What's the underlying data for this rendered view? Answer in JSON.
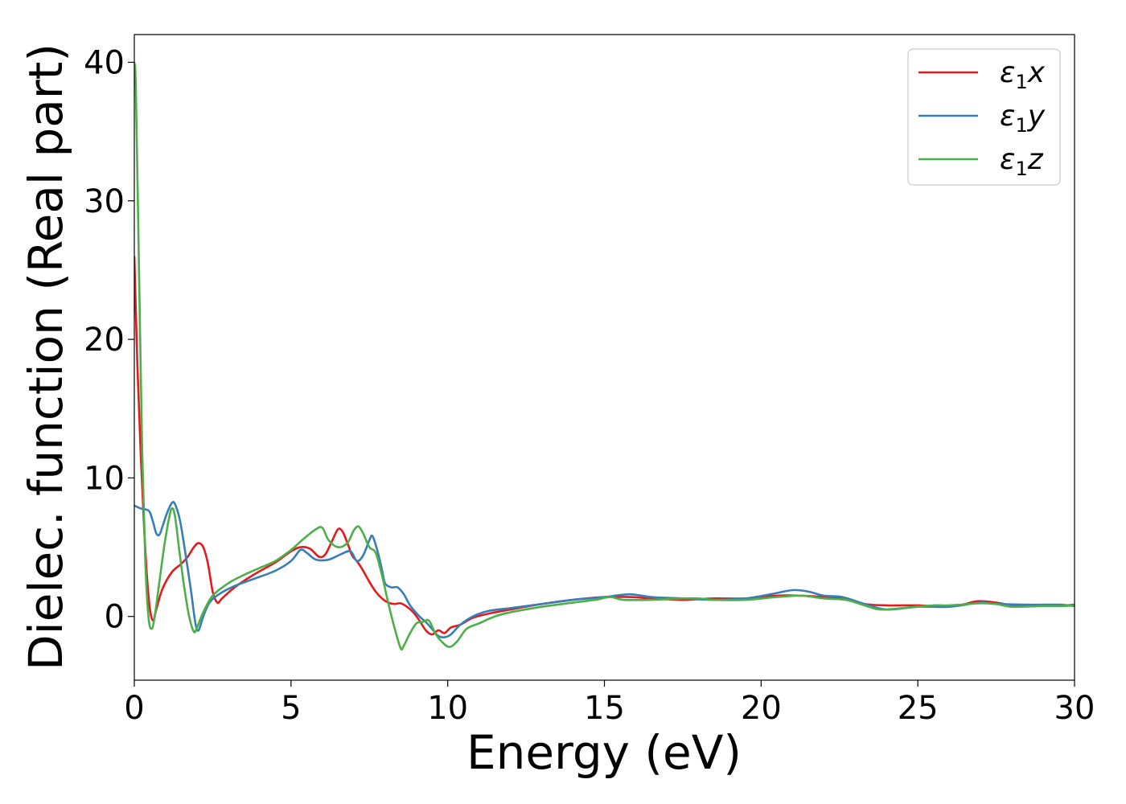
{
  "chart_data": {
    "type": "line",
    "title": "",
    "xlabel": "Energy (eV)",
    "ylabel": "Dielec. function (Real part)",
    "xlim": [
      0,
      30
    ],
    "ylim": [
      -4.6,
      42
    ],
    "xticks": [
      0,
      5,
      10,
      15,
      20,
      25,
      30
    ],
    "yticks": [
      0,
      10,
      20,
      30,
      40
    ],
    "grid": false,
    "legend_position": "top-right",
    "series": [
      {
        "name": "ε₁x",
        "legend_base": "ε",
        "legend_sub": "1",
        "legend_suffix": "x",
        "color": "#e41a1c",
        "points": [
          [
            0,
            26
          ],
          [
            0.1,
            18
          ],
          [
            0.2,
            12
          ],
          [
            0.3,
            7
          ],
          [
            0.4,
            3
          ],
          [
            0.5,
            0.5
          ],
          [
            0.6,
            -0.3
          ],
          [
            0.7,
            0.5
          ],
          [
            0.9,
            2
          ],
          [
            1.2,
            3.2
          ],
          [
            1.5,
            3.8
          ],
          [
            1.7,
            4.3
          ],
          [
            1.9,
            5
          ],
          [
            2.05,
            5.3
          ],
          [
            2.2,
            5
          ],
          [
            2.35,
            3.8
          ],
          [
            2.5,
            1.8
          ],
          [
            2.65,
            1
          ],
          [
            2.8,
            1.3
          ],
          [
            3.2,
            2.1
          ],
          [
            3.8,
            3
          ],
          [
            4.5,
            3.9
          ],
          [
            5,
            4.7
          ],
          [
            5.3,
            5
          ],
          [
            5.6,
            4.9
          ],
          [
            5.9,
            4.3
          ],
          [
            6.1,
            4.5
          ],
          [
            6.3,
            5.4
          ],
          [
            6.5,
            6.3
          ],
          [
            6.65,
            6.1
          ],
          [
            6.8,
            5.3
          ],
          [
            6.95,
            4.4
          ],
          [
            7.1,
            4
          ],
          [
            7.25,
            3.5
          ],
          [
            7.5,
            2.5
          ],
          [
            7.7,
            1.8
          ],
          [
            7.9,
            1.3
          ],
          [
            8.1,
            1
          ],
          [
            8.3,
            0.9
          ],
          [
            8.5,
            0.95
          ],
          [
            8.7,
            0.7
          ],
          [
            8.9,
            0.3
          ],
          [
            9.1,
            -0.3
          ],
          [
            9.3,
            -1
          ],
          [
            9.5,
            -1.3
          ],
          [
            9.7,
            -1
          ],
          [
            9.9,
            -1.2
          ],
          [
            10.1,
            -0.8
          ],
          [
            10.4,
            -0.6
          ],
          [
            10.8,
            -0.1
          ],
          [
            11.3,
            0.2
          ],
          [
            12,
            0.5
          ],
          [
            13,
            0.9
          ],
          [
            14,
            1.2
          ],
          [
            15,
            1.4
          ],
          [
            15.8,
            1.4
          ],
          [
            16.5,
            1.3
          ],
          [
            17.5,
            1.2
          ],
          [
            18.5,
            1.3
          ],
          [
            19.5,
            1.3
          ],
          [
            20.5,
            1.5
          ],
          [
            21.3,
            1.5
          ],
          [
            22,
            1.4
          ],
          [
            22.7,
            1.3
          ],
          [
            23.3,
            0.9
          ],
          [
            24,
            0.8
          ],
          [
            25,
            0.8
          ],
          [
            25.5,
            0.75
          ],
          [
            26.3,
            0.8
          ],
          [
            26.9,
            1.1
          ],
          [
            27.5,
            1
          ],
          [
            28,
            0.8
          ],
          [
            28.6,
            0.75
          ],
          [
            29.2,
            0.8
          ],
          [
            29.7,
            0.8
          ],
          [
            30,
            0.85
          ]
        ]
      },
      {
        "name": "ε₁y",
        "legend_base": "ε",
        "legend_sub": "1",
        "legend_suffix": "y",
        "color": "#377eb8",
        "points": [
          [
            0,
            8
          ],
          [
            0.2,
            7.8
          ],
          [
            0.4,
            7.7
          ],
          [
            0.5,
            7.5
          ],
          [
            0.6,
            6.8
          ],
          [
            0.7,
            6
          ],
          [
            0.8,
            5.9
          ],
          [
            0.9,
            6.5
          ],
          [
            1.05,
            7.5
          ],
          [
            1.2,
            8.2
          ],
          [
            1.3,
            8.1
          ],
          [
            1.45,
            7
          ],
          [
            1.6,
            5
          ],
          [
            1.8,
            2
          ],
          [
            1.95,
            -0.5
          ],
          [
            2.05,
            -1
          ],
          [
            2.2,
            0
          ],
          [
            2.4,
            1
          ],
          [
            2.7,
            1.6
          ],
          [
            3.2,
            2.2
          ],
          [
            3.8,
            2.7
          ],
          [
            4.5,
            3.3
          ],
          [
            5,
            4
          ],
          [
            5.3,
            4.8
          ],
          [
            5.5,
            4.6
          ],
          [
            5.8,
            4.1
          ],
          [
            6.2,
            4.1
          ],
          [
            6.6,
            4.5
          ],
          [
            6.9,
            4.7
          ],
          [
            7.1,
            4
          ],
          [
            7.3,
            4.4
          ],
          [
            7.5,
            5.5
          ],
          [
            7.6,
            5.8
          ],
          [
            7.75,
            4.8
          ],
          [
            7.9,
            3.4
          ],
          [
            8,
            2.4
          ],
          [
            8.2,
            2.1
          ],
          [
            8.4,
            2.1
          ],
          [
            8.6,
            1.6
          ],
          [
            8.8,
            0.8
          ],
          [
            9.1,
            0
          ],
          [
            9.3,
            -0.4
          ],
          [
            9.5,
            -0.9
          ],
          [
            9.7,
            -1.4
          ],
          [
            9.9,
            -1.5
          ],
          [
            10.1,
            -1.3
          ],
          [
            10.4,
            -0.6
          ],
          [
            10.8,
            0
          ],
          [
            11.3,
            0.4
          ],
          [
            12,
            0.6
          ],
          [
            13,
            0.9
          ],
          [
            14,
            1.2
          ],
          [
            15,
            1.4
          ],
          [
            15.8,
            1.6
          ],
          [
            16.5,
            1.4
          ],
          [
            17.5,
            1.3
          ],
          [
            18.5,
            1.2
          ],
          [
            19.5,
            1.3
          ],
          [
            20.3,
            1.6
          ],
          [
            21,
            1.9
          ],
          [
            21.5,
            1.8
          ],
          [
            22,
            1.5
          ],
          [
            22.6,
            1.4
          ],
          [
            23.3,
            0.9
          ],
          [
            24,
            0.5
          ],
          [
            25,
            0.7
          ],
          [
            26,
            0.7
          ],
          [
            27,
            1
          ],
          [
            27.5,
            0.9
          ],
          [
            28.5,
            0.85
          ],
          [
            29.5,
            0.85
          ],
          [
            30,
            0.75
          ]
        ]
      },
      {
        "name": "ε₁z",
        "legend_base": "ε",
        "legend_sub": "1",
        "legend_suffix": "z",
        "color": "#4daf4a",
        "points": [
          [
            0,
            40
          ],
          [
            0.05,
            38
          ],
          [
            0.15,
            25
          ],
          [
            0.25,
            12
          ],
          [
            0.35,
            4
          ],
          [
            0.45,
            0
          ],
          [
            0.55,
            -0.9
          ],
          [
            0.65,
            0
          ],
          [
            0.8,
            2.5
          ],
          [
            0.95,
            5
          ],
          [
            1.1,
            7
          ],
          [
            1.2,
            7.8
          ],
          [
            1.3,
            7.2
          ],
          [
            1.45,
            4.5
          ],
          [
            1.6,
            2
          ],
          [
            1.75,
            0
          ],
          [
            1.9,
            -1.1
          ],
          [
            2,
            -0.8
          ],
          [
            2.2,
            0.3
          ],
          [
            2.5,
            1.5
          ],
          [
            3,
            2.4
          ],
          [
            3.5,
            3
          ],
          [
            4,
            3.5
          ],
          [
            4.5,
            4
          ],
          [
            5,
            4.8
          ],
          [
            5.4,
            5.6
          ],
          [
            5.8,
            6.3
          ],
          [
            6.0,
            6.4
          ],
          [
            6.2,
            5.5
          ],
          [
            6.5,
            5
          ],
          [
            6.8,
            5.3
          ],
          [
            7.0,
            6.2
          ],
          [
            7.15,
            6.5
          ],
          [
            7.3,
            6
          ],
          [
            7.5,
            5
          ],
          [
            7.7,
            4.6
          ],
          [
            7.9,
            3
          ],
          [
            8.1,
            1
          ],
          [
            8.3,
            -0.8
          ],
          [
            8.5,
            -2.3
          ],
          [
            8.6,
            -2.1
          ],
          [
            8.8,
            -1.2
          ],
          [
            9.0,
            -0.5
          ],
          [
            9.2,
            -0.4
          ],
          [
            9.4,
            -0.3
          ],
          [
            9.6,
            -1.2
          ],
          [
            9.8,
            -1.8
          ],
          [
            10.05,
            -2.2
          ],
          [
            10.3,
            -1.8
          ],
          [
            10.6,
            -0.9
          ],
          [
            11,
            -0.5
          ],
          [
            11.5,
            0
          ],
          [
            12,
            0.3
          ],
          [
            13,
            0.7
          ],
          [
            14,
            1
          ],
          [
            14.7,
            1.2
          ],
          [
            15.2,
            1.4
          ],
          [
            15.6,
            1.2
          ],
          [
            16.5,
            1.2
          ],
          [
            17.5,
            1.3
          ],
          [
            18,
            1.3
          ],
          [
            18.5,
            1.2
          ],
          [
            19.5,
            1.2
          ],
          [
            20.5,
            1.4
          ],
          [
            21.3,
            1.5
          ],
          [
            22,
            1.3
          ],
          [
            22.7,
            1.2
          ],
          [
            23.3,
            0.8
          ],
          [
            23.8,
            0.5
          ],
          [
            24.5,
            0.6
          ],
          [
            25.5,
            0.8
          ],
          [
            26,
            0.8
          ],
          [
            27,
            0.95
          ],
          [
            27.5,
            0.9
          ],
          [
            28,
            0.7
          ],
          [
            29,
            0.75
          ],
          [
            29.5,
            0.75
          ],
          [
            30,
            0.8
          ]
        ]
      }
    ]
  }
}
